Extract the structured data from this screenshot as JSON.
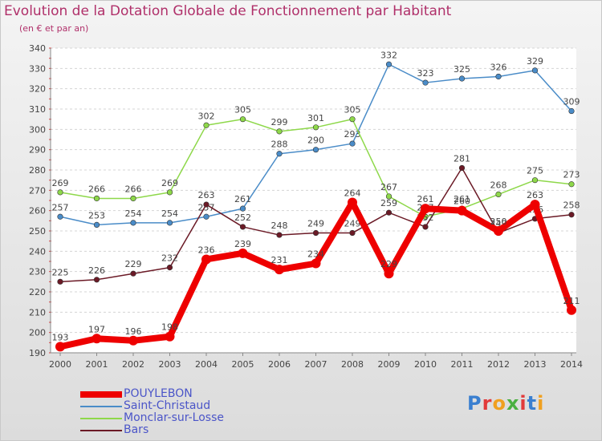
{
  "header": {
    "title": "Evolution de la Dotation Globale de Fonctionnement par Habitant",
    "subtitle": "(en € et par an)"
  },
  "chart_data": {
    "type": "line",
    "title": "Evolution de la Dotation Globale de Fonctionnement par Habitant",
    "ylabel": "(en € et par an)",
    "xlabel": "",
    "x": [
      2000,
      2001,
      2002,
      2003,
      2004,
      2005,
      2006,
      2007,
      2008,
      2009,
      2010,
      2011,
      2012,
      2013,
      2014
    ],
    "ylim": [
      190,
      340
    ],
    "yticks": [
      190,
      200,
      210,
      220,
      230,
      240,
      250,
      260,
      270,
      280,
      290,
      300,
      310,
      320,
      330,
      340
    ],
    "grid": "horizontal",
    "series": [
      {
        "name": "Saint-Christaud",
        "color": "#4a8cc8",
        "values": [
          257,
          253,
          254,
          254,
          257,
          261,
          288,
          290,
          293,
          332,
          323,
          325,
          326,
          329,
          309
        ],
        "labels": [
          "257",
          "253",
          "254",
          "254",
          "257",
          "261",
          "288",
          "290",
          "293",
          "332",
          "323",
          "325",
          "326",
          "329",
          "309"
        ]
      },
      {
        "name": "Monclar-sur-Losse",
        "color": "#8ed84a",
        "values": [
          269,
          266,
          266,
          269,
          302,
          305,
          299,
          301,
          305,
          267,
          257,
          261,
          268,
          275,
          273
        ],
        "labels": [
          "269",
          "266",
          "266",
          "269",
          "302",
          "305",
          "299",
          "301",
          "305",
          "267",
          "257",
          "261",
          "268",
          "275",
          "273"
        ]
      },
      {
        "name": "Bars",
        "color": "#6b1a26",
        "values": [
          225,
          226,
          229,
          232,
          263,
          252,
          248,
          249,
          249,
          259,
          252,
          281,
          249,
          256,
          258
        ],
        "labels": [
          "225",
          "226",
          "229",
          "232",
          "263",
          "252",
          "248",
          "249",
          "249",
          "259",
          "252",
          "281",
          "249",
          "256",
          "258"
        ]
      },
      {
        "name": "POUYLEBON",
        "color": "#ee0000",
        "values": [
          193,
          197,
          196,
          198,
          236,
          239,
          231,
          234,
          264,
          229,
          261,
          260,
          250,
          263,
          211
        ],
        "labels": [
          "193",
          "197",
          "196",
          "198",
          "236",
          "239",
          "231",
          "234",
          "264",
          "229",
          "261",
          "260",
          "250",
          "263",
          "211"
        ]
      }
    ]
  },
  "legend": [
    {
      "label": "POUYLEBON",
      "color": "#ee0000",
      "thick": true
    },
    {
      "label": "Saint-Christaud",
      "color": "#4a8cc8",
      "thick": false
    },
    {
      "label": "Monclar-sur-Losse",
      "color": "#8ed84a",
      "thick": false
    },
    {
      "label": "Bars",
      "color": "#6b1a26",
      "thick": false
    }
  ],
  "logo": {
    "text": "Proxiti",
    "colors": [
      "#3a7fd0",
      "#e23a3a",
      "#f0a020",
      "#4ab040",
      "#e23a3a",
      "#3a7fd0",
      "#f0a020"
    ]
  }
}
